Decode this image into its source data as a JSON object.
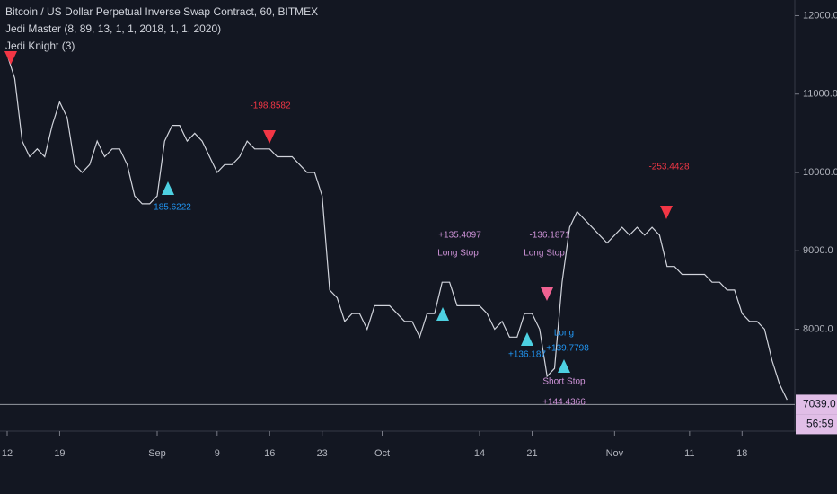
{
  "chart_data": {
    "type": "line",
    "title": "Bitcoin / US Dollar Perpetual Inverse Swap Contract, 60, BITMEX",
    "subtitles": [
      "Jedi Master (8, 89, 13, 1, 1, 2018, 1, 1, 2020)",
      "Jedi Knight (3)"
    ],
    "color": "#d1d4dc",
    "categories": [
      "12",
      null,
      null,
      null,
      null,
      null,
      null,
      "19",
      null,
      null,
      null,
      null,
      null,
      null,
      null,
      null,
      null,
      null,
      null,
      null,
      "Sep",
      null,
      null,
      null,
      null,
      null,
      null,
      null,
      "9",
      null,
      null,
      null,
      null,
      null,
      null,
      "16",
      null,
      null,
      null,
      null,
      null,
      null,
      "23",
      null,
      null,
      null,
      null,
      null,
      null,
      null,
      "Oct",
      null,
      null,
      null,
      null,
      null,
      null,
      null,
      null,
      null,
      null,
      null,
      null,
      "14",
      null,
      null,
      null,
      null,
      null,
      null,
      "21",
      null,
      null,
      null,
      null,
      null,
      null,
      null,
      null,
      null,
      null,
      "Nov",
      null,
      null,
      null,
      null,
      null,
      null,
      null,
      null,
      null,
      "11",
      null,
      null,
      null,
      null,
      null,
      null,
      "18",
      null,
      null,
      null,
      null,
      null,
      null
    ],
    "values": [
      11500,
      11200,
      10400,
      10200,
      10300,
      10200,
      10600,
      10900,
      10700,
      10100,
      10000,
      10100,
      10400,
      10200,
      10300,
      10300,
      10100,
      9700,
      9600,
      9600,
      9700,
      10400,
      10600,
      10600,
      10400,
      10500,
      10400,
      10200,
      10000,
      10100,
      10100,
      10200,
      10400,
      10300,
      10300,
      10300,
      10200,
      10200,
      10200,
      10100,
      10000,
      10000,
      9700,
      8500,
      8400,
      8100,
      8200,
      8200,
      8000,
      8300,
      8300,
      8300,
      8200,
      8100,
      8100,
      7900,
      8200,
      8200,
      8600,
      8600,
      8300,
      8300,
      8300,
      8300,
      8200,
      8000,
      8100,
      7900,
      7900,
      8200,
      8200,
      8000,
      7400,
      7500,
      8600,
      9300,
      9500,
      9400,
      9300,
      9200,
      9100,
      9200,
      9300,
      9200,
      9300,
      9200,
      9300,
      9200,
      8800,
      8800,
      8700,
      8700,
      8700,
      8700,
      8600,
      8600,
      8500,
      8500,
      8200,
      8100,
      8100,
      8000,
      7600,
      7300,
      7100
    ],
    "ylim": [
      6700,
      12200
    ],
    "yticks": [
      {
        "value": 8000,
        "label": "8000.0"
      },
      {
        "value": 9000,
        "label": "9000.0"
      },
      {
        "value": 10000,
        "label": "10000.0"
      },
      {
        "value": 11000,
        "label": "11000.0"
      },
      {
        "value": 12000,
        "label": "12000.0"
      }
    ],
    "current_price": {
      "value": 7039,
      "label": "7039.0"
    },
    "countdown": "56:59",
    "annotations": [
      {
        "text": "-198.8582",
        "color": "#f23645"
      },
      {
        "text": "185.6222",
        "color": "#2196f3"
      },
      {
        "text": "+135.4097",
        "color": "#ce93d8"
      },
      {
        "text": "Long Stop",
        "color": "#ce93d8"
      },
      {
        "text": "-136.1871",
        "color": "#ce93d8"
      },
      {
        "text": "Long Stop",
        "color": "#ce93d8"
      },
      {
        "text": "-253.4428",
        "color": "#f23645"
      },
      {
        "text": "+136.187",
        "color": "#2196f3"
      },
      {
        "text": "+139.7798",
        "color": "#2196f3"
      },
      {
        "text": "Long",
        "color": "#2196f3"
      },
      {
        "text": "Short Stop",
        "color": "#ce93d8"
      },
      {
        "text": "+144.4366",
        "color": "#ce93d8"
      }
    ]
  }
}
